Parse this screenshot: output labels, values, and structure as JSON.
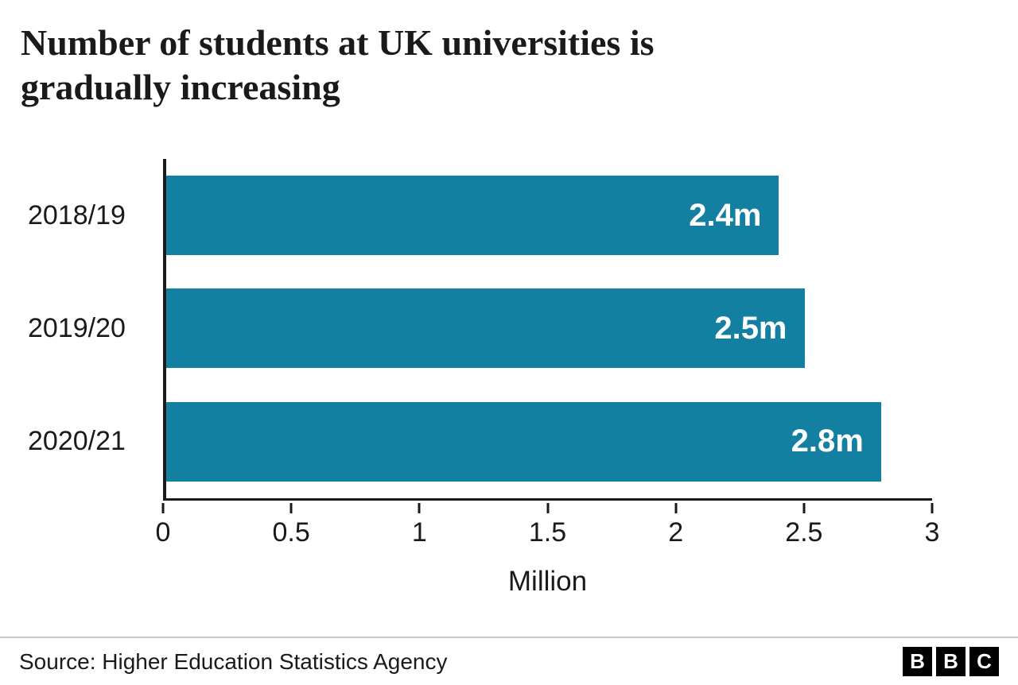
{
  "title": {
    "lines": [
      "Number of students at UK universities is",
      "gradually increasing"
    ]
  },
  "chart_data": {
    "type": "bar",
    "orientation": "horizontal",
    "title": "Number of students at UK universities is gradually increasing",
    "categories": [
      "2018/19",
      "2019/20",
      "2020/21"
    ],
    "values": [
      2.4,
      2.5,
      2.8
    ],
    "value_labels": [
      "2.4m",
      "2.5m",
      "2.8m"
    ],
    "xlabel": "Million",
    "xlim": [
      0,
      3
    ],
    "x_ticks": [
      0,
      0.5,
      1,
      1.5,
      2,
      2.5,
      3
    ],
    "x_tick_labels": [
      "0",
      "0.5",
      "1",
      "1.5",
      "2",
      "2.5",
      "3"
    ],
    "bar_color": "#1380A1",
    "value_label_color": "#ffffff",
    "grid": false,
    "legend_position": "none"
  },
  "footer": {
    "source": "Source: Higher Education Statistics Agency",
    "brand_letters": [
      "B",
      "B",
      "C"
    ]
  }
}
